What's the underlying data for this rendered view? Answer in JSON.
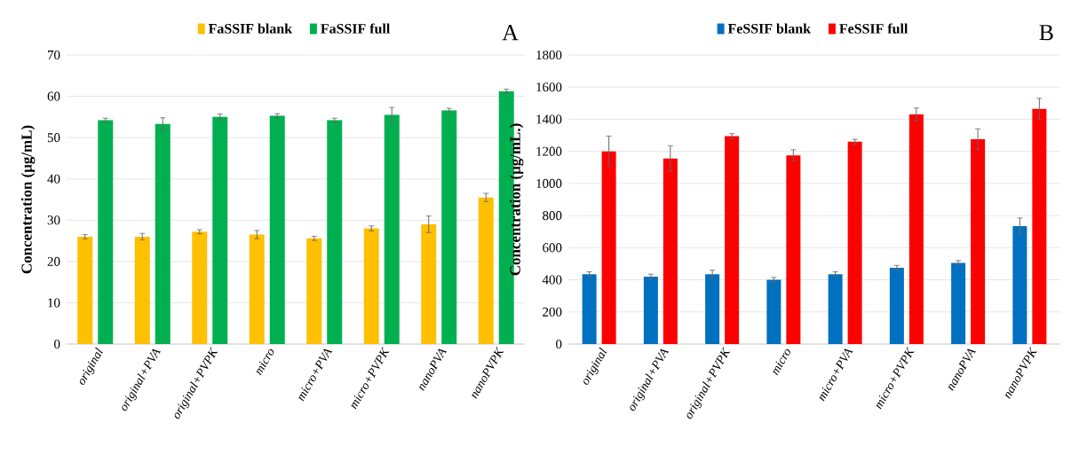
{
  "chart_data": [
    {
      "type": "bar",
      "ylabel": "Concentration  (μg/mL)",
      "annotations": [
        "A"
      ],
      "categories": [
        "original",
        "original+PVA",
        "original+PVPK",
        "micro",
        "micro+PVA",
        "micro+PVPK",
        "nanoPVA",
        "nanoPVPK"
      ],
      "series": [
        {
          "name": "FaSSIF blank",
          "color": "#ffc000",
          "values": [
            26,
            26,
            27.2,
            26.5,
            25.6,
            28,
            29,
            35.5
          ],
          "errors": [
            0.5,
            0.8,
            0.5,
            1,
            0.5,
            0.6,
            2,
            1
          ]
        },
        {
          "name": "FaSSIF full",
          "color": "#00b050",
          "values": [
            54.2,
            53.3,
            55,
            55.3,
            54.2,
            55.5,
            56.6,
            61.2
          ],
          "errors": [
            0.5,
            1.5,
            0.7,
            0.5,
            0.5,
            1.8,
            0.5,
            0.5
          ]
        }
      ],
      "ylim": [
        0,
        70
      ],
      "yticks": [
        0,
        10,
        20,
        30,
        40,
        50,
        60,
        70
      ],
      "grid": "y",
      "legend": "top"
    },
    {
      "type": "bar",
      "ylabel": "Concentration  (μg/mL.)",
      "annotations": [
        "B"
      ],
      "categories": [
        "original",
        "original+PVA",
        "original+PVPK",
        "micro",
        "micro+PVA",
        "micro+PVPK",
        "nanoPVA",
        "nanoPVPK"
      ],
      "series": [
        {
          "name": "FeSSIF blank",
          "color": "#0070c0",
          "values": [
            435,
            420,
            435,
            400,
            435,
            475,
            505,
            735
          ],
          "errors": [
            15,
            15,
            25,
            15,
            15,
            15,
            15,
            50
          ]
        },
        {
          "name": "FeSSIF full",
          "color": "#ff0000",
          "values": [
            1200,
            1155,
            1295,
            1175,
            1260,
            1430,
            1275,
            1465
          ],
          "errors": [
            95,
            80,
            15,
            35,
            15,
            40,
            65,
            65
          ]
        }
      ],
      "ylim": [
        0,
        1800
      ],
      "yticks": [
        0,
        200,
        400,
        600,
        800,
        1000,
        1200,
        1400,
        1600,
        1800
      ],
      "grid": "y",
      "legend": "top"
    }
  ]
}
